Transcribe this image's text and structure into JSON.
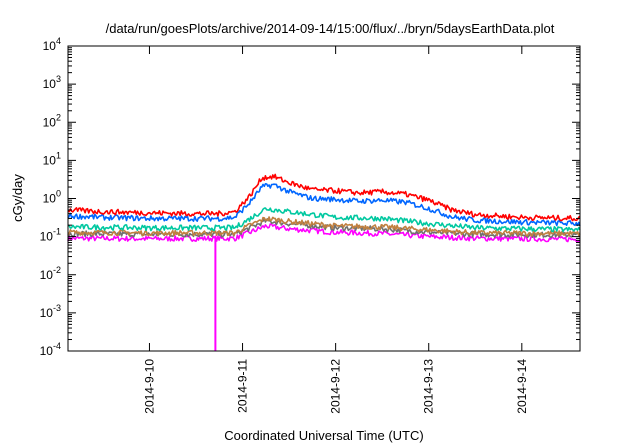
{
  "chart_data": {
    "type": "line",
    "title": "/data/run/goesPlots/archive/2014-09-14/15:00/flux/../bryn/5daysEarthData.plot",
    "xlabel": "Coordinated Universal Time (UTC)",
    "ylabel": "cGy/day",
    "y_scale": "log",
    "ylim": [
      0.0001,
      10000
    ],
    "y_ticks": [
      {
        "base": "10",
        "exp": "-4",
        "value": 0.0001
      },
      {
        "base": "10",
        "exp": "-3",
        "value": 0.001
      },
      {
        "base": "10",
        "exp": "-2",
        "value": 0.01
      },
      {
        "base": "10",
        "exp": "-1",
        "value": 0.1
      },
      {
        "base": "10",
        "exp": "0",
        "value": 1
      },
      {
        "base": "10",
        "exp": "1",
        "value": 10
      },
      {
        "base": "10",
        "exp": "2",
        "value": 100
      },
      {
        "base": "10",
        "exp": "3",
        "value": 1000
      },
      {
        "base": "10",
        "exp": "4",
        "value": 10000
      }
    ],
    "xlim": [
      "2014-09-09 03:00",
      "2014-09-14 15:00"
    ],
    "x_ticks": [
      "2014-9-10",
      "2014-9-11",
      "2014-9-12",
      "2014-9-13",
      "2014-9-14"
    ],
    "grid": false,
    "series": [
      {
        "color": "#ff0000",
        "x": [
          "2014-09-09 03:00",
          "2014-09-09 12:00",
          "2014-09-10 00:00",
          "2014-09-10 12:00",
          "2014-09-10 18:00",
          "2014-09-10 22:00",
          "2014-09-11 02:00",
          "2014-09-11 05:00",
          "2014-09-11 08:00",
          "2014-09-11 12:00",
          "2014-09-11 18:00",
          "2014-09-12 00:00",
          "2014-09-12 06:00",
          "2014-09-12 12:00",
          "2014-09-12 18:00",
          "2014-09-13 00:00",
          "2014-09-13 06:00",
          "2014-09-13 12:00",
          "2014-09-14 00:00",
          "2014-09-14 15:00"
        ],
        "values": [
          0.5,
          0.45,
          0.42,
          0.4,
          0.4,
          0.45,
          1.2,
          3.5,
          3.8,
          2.6,
          1.7,
          1.6,
          1.4,
          1.5,
          1.3,
          0.9,
          0.5,
          0.38,
          0.32,
          0.3
        ]
      },
      {
        "color": "#0066ff",
        "x": [
          "2014-09-09 03:00",
          "2014-09-09 12:00",
          "2014-09-10 00:00",
          "2014-09-10 12:00",
          "2014-09-10 18:00",
          "2014-09-10 22:00",
          "2014-09-11 02:00",
          "2014-09-11 05:00",
          "2014-09-11 08:00",
          "2014-09-11 12:00",
          "2014-09-11 18:00",
          "2014-09-12 00:00",
          "2014-09-12 06:00",
          "2014-09-12 12:00",
          "2014-09-12 18:00",
          "2014-09-13 00:00",
          "2014-09-13 06:00",
          "2014-09-13 12:00",
          "2014-09-14 00:00",
          "2014-09-14 15:00"
        ],
        "values": [
          0.35,
          0.32,
          0.3,
          0.3,
          0.3,
          0.32,
          0.8,
          2.0,
          2.3,
          1.5,
          1.0,
          0.95,
          0.85,
          0.9,
          0.8,
          0.55,
          0.33,
          0.27,
          0.24,
          0.22
        ]
      },
      {
        "color": "#00c8a0",
        "x": [
          "2014-09-09 03:00",
          "2014-09-10 00:00",
          "2014-09-10 22:00",
          "2014-09-11 02:00",
          "2014-09-11 06:00",
          "2014-09-11 12:00",
          "2014-09-12 00:00",
          "2014-09-12 12:00",
          "2014-09-13 00:00",
          "2014-09-13 12:00",
          "2014-09-14 15:00"
        ],
        "values": [
          0.18,
          0.17,
          0.17,
          0.3,
          0.55,
          0.45,
          0.32,
          0.3,
          0.22,
          0.17,
          0.15
        ]
      },
      {
        "color": "#c08040",
        "x": [
          "2014-09-09 03:00",
          "2014-09-10 00:00",
          "2014-09-10 22:00",
          "2014-09-11 02:00",
          "2014-09-11 06:00",
          "2014-09-11 12:00",
          "2014-09-12 00:00",
          "2014-09-12 12:00",
          "2014-09-13 00:00",
          "2014-09-13 12:00",
          "2014-09-14 15:00"
        ],
        "values": [
          0.13,
          0.125,
          0.125,
          0.2,
          0.3,
          0.25,
          0.19,
          0.18,
          0.15,
          0.125,
          0.12
        ]
      },
      {
        "color": "#707070",
        "x": [
          "2014-09-09 03:00",
          "2014-09-10 00:00",
          "2014-09-10 22:00",
          "2014-09-11 02:00",
          "2014-09-11 06:00",
          "2014-09-11 12:00",
          "2014-09-12 00:00",
          "2014-09-12 12:00",
          "2014-09-13 00:00",
          "2014-09-13 12:00",
          "2014-09-14 15:00"
        ],
        "values": [
          0.12,
          0.115,
          0.115,
          0.17,
          0.26,
          0.22,
          0.17,
          0.16,
          0.13,
          0.115,
          0.11
        ]
      },
      {
        "color": "#ff00ff",
        "x": [
          "2014-09-09 03:00",
          "2014-09-10 00:00",
          "2014-09-10 22:00",
          "2014-09-11 02:00",
          "2014-09-11 06:00",
          "2014-09-11 12:00",
          "2014-09-12 00:00",
          "2014-09-12 12:00",
          "2014-09-13 00:00",
          "2014-09-13 12:00",
          "2014-09-14 15:00"
        ],
        "values": [
          0.09,
          0.088,
          0.09,
          0.13,
          0.19,
          0.16,
          0.13,
          0.12,
          0.1,
          0.09,
          0.085
        ]
      }
    ],
    "annotations": [
      {
        "type": "vertical_line",
        "color": "#ff00ff",
        "x": "2014-09-10 17:00",
        "from": 0.0001,
        "to": 0.1
      }
    ]
  }
}
